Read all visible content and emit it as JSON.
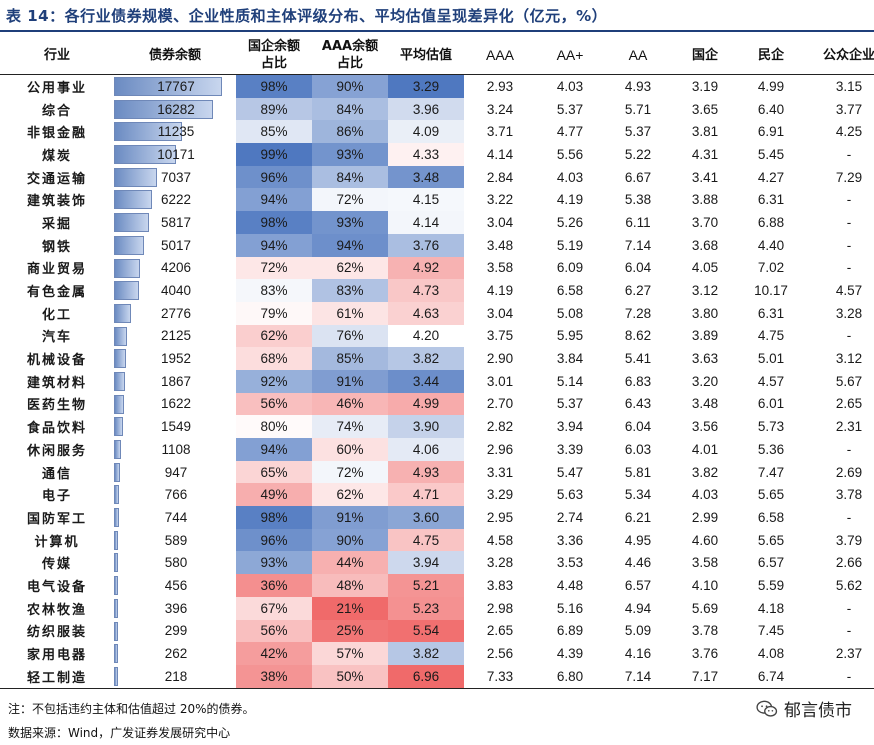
{
  "title": "表 14：各行业债券规模、企业性质和主体评级分布、平均估值呈现差异化（亿元，%）",
  "headers": {
    "industry": "行业",
    "balance": "债券余额",
    "soe_share": "国企余额\n占比",
    "aaa_share": "AAA余额\n占比",
    "avg_val": "平均估值",
    "aaa": "AAA",
    "aa_plus": "AA+",
    "aa": "AA",
    "soe": "国企",
    "private": "民企",
    "public": "公众企业"
  },
  "rows": [
    {
      "industry": "公用事业",
      "balance": "17767",
      "soe_share": "98%",
      "aaa_share": "90%",
      "avg_val": "3.29",
      "aaa": "2.93",
      "aa_plus": "4.03",
      "aa": "4.93",
      "soe": "3.19",
      "private": "4.99",
      "public": "3.15"
    },
    {
      "industry": "综合",
      "balance": "16282",
      "soe_share": "89%",
      "aaa_share": "84%",
      "avg_val": "3.96",
      "aaa": "3.24",
      "aa_plus": "5.37",
      "aa": "5.71",
      "soe": "3.65",
      "private": "6.40",
      "public": "3.77"
    },
    {
      "industry": "非银金融",
      "balance": "11235",
      "soe_share": "85%",
      "aaa_share": "86%",
      "avg_val": "4.09",
      "aaa": "3.71",
      "aa_plus": "4.77",
      "aa": "5.37",
      "soe": "3.81",
      "private": "6.91",
      "public": "4.25"
    },
    {
      "industry": "煤炭",
      "balance": "10171",
      "soe_share": "99%",
      "aaa_share": "93%",
      "avg_val": "4.33",
      "aaa": "4.14",
      "aa_plus": "5.56",
      "aa": "5.22",
      "soe": "4.31",
      "private": "5.45",
      "public": "-"
    },
    {
      "industry": "交通运输",
      "balance": "7037",
      "soe_share": "96%",
      "aaa_share": "84%",
      "avg_val": "3.48",
      "aaa": "2.84",
      "aa_plus": "4.03",
      "aa": "6.67",
      "soe": "3.41",
      "private": "4.27",
      "public": "7.29"
    },
    {
      "industry": "建筑装饰",
      "balance": "6222",
      "soe_share": "94%",
      "aaa_share": "72%",
      "avg_val": "4.15",
      "aaa": "3.22",
      "aa_plus": "4.19",
      "aa": "5.38",
      "soe": "3.88",
      "private": "6.31",
      "public": "-"
    },
    {
      "industry": "采掘",
      "balance": "5817",
      "soe_share": "98%",
      "aaa_share": "93%",
      "avg_val": "4.14",
      "aaa": "3.04",
      "aa_plus": "5.26",
      "aa": "6.11",
      "soe": "3.70",
      "private": "6.88",
      "public": "-"
    },
    {
      "industry": "钢铁",
      "balance": "5017",
      "soe_share": "94%",
      "aaa_share": "94%",
      "avg_val": "3.76",
      "aaa": "3.48",
      "aa_plus": "5.19",
      "aa": "7.14",
      "soe": "3.68",
      "private": "4.40",
      "public": "-"
    },
    {
      "industry": "商业贸易",
      "balance": "4206",
      "soe_share": "72%",
      "aaa_share": "62%",
      "avg_val": "4.92",
      "aaa": "3.58",
      "aa_plus": "6.09",
      "aa": "6.04",
      "soe": "4.05",
      "private": "7.02",
      "public": "-"
    },
    {
      "industry": "有色金属",
      "balance": "4040",
      "soe_share": "83%",
      "aaa_share": "83%",
      "avg_val": "4.73",
      "aaa": "4.19",
      "aa_plus": "6.58",
      "aa": "6.27",
      "soe": "3.12",
      "private": "10.17",
      "public": "4.57"
    },
    {
      "industry": "化工",
      "balance": "2776",
      "soe_share": "79%",
      "aaa_share": "61%",
      "avg_val": "4.63",
      "aaa": "3.04",
      "aa_plus": "5.08",
      "aa": "7.28",
      "soe": "3.80",
      "private": "6.31",
      "public": "3.28"
    },
    {
      "industry": "汽车",
      "balance": "2125",
      "soe_share": "62%",
      "aaa_share": "76%",
      "avg_val": "4.20",
      "aaa": "3.75",
      "aa_plus": "5.95",
      "aa": "8.62",
      "soe": "3.89",
      "private": "4.75",
      "public": "-"
    },
    {
      "industry": "机械设备",
      "balance": "1952",
      "soe_share": "68%",
      "aaa_share": "85%",
      "avg_val": "3.82",
      "aaa": "2.90",
      "aa_plus": "3.84",
      "aa": "5.41",
      "soe": "3.63",
      "private": "5.01",
      "public": "3.12"
    },
    {
      "industry": "建筑材料",
      "balance": "1867",
      "soe_share": "92%",
      "aaa_share": "91%",
      "avg_val": "3.44",
      "aaa": "3.01",
      "aa_plus": "5.14",
      "aa": "6.83",
      "soe": "3.20",
      "private": "4.57",
      "public": "5.67"
    },
    {
      "industry": "医药生物",
      "balance": "1622",
      "soe_share": "56%",
      "aaa_share": "46%",
      "avg_val": "4.99",
      "aaa": "2.70",
      "aa_plus": "5.37",
      "aa": "6.43",
      "soe": "3.48",
      "private": "6.01",
      "public": "2.65"
    },
    {
      "industry": "食品饮料",
      "balance": "1549",
      "soe_share": "80%",
      "aaa_share": "74%",
      "avg_val": "3.90",
      "aaa": "2.82",
      "aa_plus": "3.94",
      "aa": "6.04",
      "soe": "3.56",
      "private": "5.73",
      "public": "2.31"
    },
    {
      "industry": "休闲服务",
      "balance": "1108",
      "soe_share": "94%",
      "aaa_share": "60%",
      "avg_val": "4.06",
      "aaa": "2.96",
      "aa_plus": "3.39",
      "aa": "6.03",
      "soe": "4.01",
      "private": "5.36",
      "public": "-"
    },
    {
      "industry": "通信",
      "balance": "947",
      "soe_share": "65%",
      "aaa_share": "72%",
      "avg_val": "4.93",
      "aaa": "3.31",
      "aa_plus": "5.47",
      "aa": "5.81",
      "soe": "3.82",
      "private": "7.47",
      "public": "2.69"
    },
    {
      "industry": "电子",
      "balance": "766",
      "soe_share": "49%",
      "aaa_share": "62%",
      "avg_val": "4.71",
      "aaa": "3.29",
      "aa_plus": "5.63",
      "aa": "5.34",
      "soe": "4.03",
      "private": "5.65",
      "public": "3.78"
    },
    {
      "industry": "国防军工",
      "balance": "744",
      "soe_share": "98%",
      "aaa_share": "91%",
      "avg_val": "3.60",
      "aaa": "2.95",
      "aa_plus": "2.74",
      "aa": "6.21",
      "soe": "2.99",
      "private": "6.58",
      "public": "-"
    },
    {
      "industry": "计算机",
      "balance": "589",
      "soe_share": "96%",
      "aaa_share": "90%",
      "avg_val": "4.75",
      "aaa": "4.58",
      "aa_plus": "3.36",
      "aa": "4.95",
      "soe": "4.60",
      "private": "5.65",
      "public": "3.79"
    },
    {
      "industry": "传媒",
      "balance": "580",
      "soe_share": "93%",
      "aaa_share": "44%",
      "avg_val": "3.94",
      "aaa": "3.28",
      "aa_plus": "3.53",
      "aa": "4.46",
      "soe": "3.58",
      "private": "6.57",
      "public": "2.66"
    },
    {
      "industry": "电气设备",
      "balance": "456",
      "soe_share": "36%",
      "aaa_share": "48%",
      "avg_val": "5.21",
      "aaa": "3.83",
      "aa_plus": "4.48",
      "aa": "6.57",
      "soe": "4.10",
      "private": "5.59",
      "public": "5.62"
    },
    {
      "industry": "农林牧渔",
      "balance": "396",
      "soe_share": "67%",
      "aaa_share": "21%",
      "avg_val": "5.23",
      "aaa": "2.98",
      "aa_plus": "5.16",
      "aa": "4.94",
      "soe": "5.69",
      "private": "4.18",
      "public": "-"
    },
    {
      "industry": "纺织服装",
      "balance": "299",
      "soe_share": "56%",
      "aaa_share": "25%",
      "avg_val": "5.54",
      "aaa": "2.65",
      "aa_plus": "6.89",
      "aa": "5.09",
      "soe": "3.78",
      "private": "7.45",
      "public": "-"
    },
    {
      "industry": "家用电器",
      "balance": "262",
      "soe_share": "42%",
      "aaa_share": "57%",
      "avg_val": "3.82",
      "aaa": "2.56",
      "aa_plus": "4.39",
      "aa": "4.16",
      "soe": "3.76",
      "private": "4.08",
      "public": "2.37"
    },
    {
      "industry": "轻工制造",
      "balance": "218",
      "soe_share": "38%",
      "aaa_share": "50%",
      "avg_val": "6.96",
      "aaa": "7.33",
      "aa_plus": "6.80",
      "aa": "7.14",
      "soe": "7.17",
      "private": "6.74",
      "public": "-"
    }
  ],
  "colors": {
    "bar": "#6b8bc2",
    "high": "#4f78c0",
    "mid": "#ffffff",
    "low": "#f06a6a"
  },
  "note": "注：不包括违约主体和估值超过 20%的债券。",
  "source": "数据来源：Wind，广发证券发展研究中心",
  "watermark": "郁言债市",
  "watermark_icon": "wechat-icon"
}
